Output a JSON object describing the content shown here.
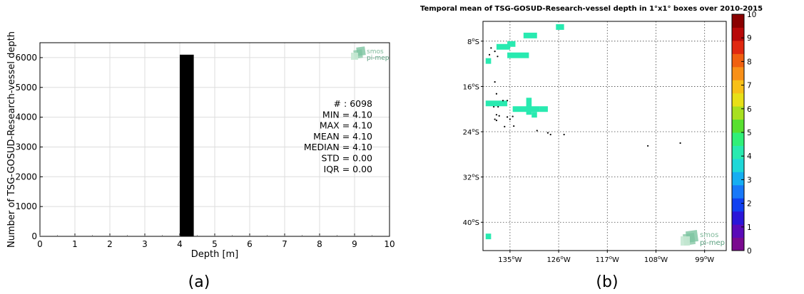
{
  "panel_a": {
    "caption": "(a)",
    "logo": {
      "line1": "smos",
      "line2": "pi-mep"
    },
    "stats": [
      {
        "label": "# :",
        "value": "6098"
      },
      {
        "label": "MIN =",
        "value": "4.10"
      },
      {
        "label": "MAX =",
        "value": " 4.10"
      },
      {
        "label": "MEAN =",
        "value": "4.10"
      },
      {
        "label": "MEDIAN =",
        "value": "4.10"
      },
      {
        "label": "STD =",
        "value": "0.00"
      },
      {
        "label": "IQR =",
        "value": "0.00"
      }
    ]
  },
  "panel_b": {
    "caption": "(b)",
    "logo": {
      "line1": "smos",
      "line2": "pi-mep"
    }
  },
  "chart_data": [
    {
      "type": "bar",
      "title": "",
      "xlabel": "Depth [m]",
      "ylabel": "Number of TSG-GOSUD-Research-vessel depth",
      "xlim": [
        0,
        10
      ],
      "ylim": [
        0,
        6500
      ],
      "xticks": [
        0,
        1,
        2,
        3,
        4,
        5,
        6,
        7,
        8,
        9,
        10
      ],
      "yticks": [
        0,
        1000,
        2000,
        3000,
        4000,
        5000,
        6000
      ],
      "grid": true,
      "bins": [
        {
          "x0": 4.0,
          "x1": 4.4,
          "count": 6098
        }
      ],
      "bar_color": "#000000"
    },
    {
      "type": "heatmap",
      "title": "Temporal mean of TSG-GOSUD-Research-vessel depth in 1°x1° boxes over 2010-2015",
      "x_ticks": [
        {
          "lon": -135,
          "label": "135°W"
        },
        {
          "lon": -126,
          "label": "126°W"
        },
        {
          "lon": -117,
          "label": "117°W"
        },
        {
          "lon": -108,
          "label": "108°W"
        },
        {
          "lon": -99,
          "label": "99°W"
        }
      ],
      "y_ticks": [
        {
          "lat": -8,
          "label": "8°S"
        },
        {
          "lat": -16,
          "label": "16°S"
        },
        {
          "lat": -24,
          "label": "24°S"
        },
        {
          "lat": -32,
          "label": "32°S"
        },
        {
          "lat": -40,
          "label": "40°S"
        }
      ],
      "lon_range": [
        -140,
        -95
      ],
      "lat_range": [
        -45,
        -4.5
      ],
      "grid": true,
      "colorbar": {
        "min": 0,
        "max": 10,
        "ticks": [
          0,
          1,
          2,
          3,
          4,
          5,
          6,
          7,
          8,
          9,
          10
        ],
        "colors": [
          "#7a0a8f",
          "#5a0ab8",
          "#2a16d8",
          "#1040f0",
          "#1878f8",
          "#16aef2",
          "#1ed8d8",
          "#28eab0",
          "#30f078",
          "#58e030",
          "#a8e020",
          "#e8e018",
          "#f8c018",
          "#f89018",
          "#f06010",
          "#e02810",
          "#b80808",
          "#8a0000"
        ]
      },
      "cells": [
        {
          "lon": -137.5,
          "lat": -8.5,
          "w": 2.5,
          "h": 1,
          "value": 4.1
        },
        {
          "lon": -135.5,
          "lat": -8,
          "w": 1.5,
          "h": 1,
          "value": 4.1
        },
        {
          "lon": -132.5,
          "lat": -6.5,
          "w": 2.5,
          "h": 1,
          "value": 4.1
        },
        {
          "lon": -126.5,
          "lat": -5,
          "w": 1.5,
          "h": 1,
          "value": 4.1
        },
        {
          "lon": -135.5,
          "lat": -10,
          "w": 4,
          "h": 1,
          "value": 4.1
        },
        {
          "lon": -139.5,
          "lat": -11,
          "w": 1,
          "h": 1,
          "value": 4.1
        },
        {
          "lon": -139.5,
          "lat": -18.5,
          "w": 4,
          "h": 1,
          "value": 4.1
        },
        {
          "lon": -134.5,
          "lat": -19.5,
          "w": 5,
          "h": 1,
          "value": 4.1
        },
        {
          "lon": -132,
          "lat": -18,
          "w": 1,
          "h": 3,
          "value": 4.1
        },
        {
          "lon": -131,
          "lat": -20.5,
          "w": 1,
          "h": 1,
          "value": 4.1
        },
        {
          "lon": -129.5,
          "lat": -19.5,
          "w": 1.5,
          "h": 1,
          "value": 4.1
        },
        {
          "lon": -139.5,
          "lat": -42,
          "w": 1,
          "h": 1,
          "value": 4.1
        }
      ],
      "dots": [
        {
          "lon": -138.5,
          "lat": -9.2
        },
        {
          "lon": -137.8,
          "lat": -9.8
        },
        {
          "lon": -138.8,
          "lat": -10.4
        },
        {
          "lon": -137.3,
          "lat": -10.7
        },
        {
          "lon": -137.8,
          "lat": -15.2
        },
        {
          "lon": -137.5,
          "lat": -17.3
        },
        {
          "lon": -136.3,
          "lat": -18.5
        },
        {
          "lon": -135.5,
          "lat": -18.5
        },
        {
          "lon": -138.0,
          "lat": -19.6
        },
        {
          "lon": -137.2,
          "lat": -19.6
        },
        {
          "lon": -137.5,
          "lat": -21.0
        },
        {
          "lon": -137.0,
          "lat": -21.2
        },
        {
          "lon": -137.8,
          "lat": -21.8
        },
        {
          "lon": -137.5,
          "lat": -22.0
        },
        {
          "lon": -135.5,
          "lat": -21.4
        },
        {
          "lon": -135.0,
          "lat": -21.8
        },
        {
          "lon": -134.5,
          "lat": -21.3
        },
        {
          "lon": -134.3,
          "lat": -23.0
        },
        {
          "lon": -136.0,
          "lat": -23.1
        },
        {
          "lon": -130.0,
          "lat": -23.8
        },
        {
          "lon": -128.0,
          "lat": -24.2
        },
        {
          "lon": -125.0,
          "lat": -24.5
        },
        {
          "lon": -109.5,
          "lat": -26.5
        },
        {
          "lon": -103.5,
          "lat": -26.0
        },
        {
          "lon": -127.5,
          "lat": -24.5
        }
      ]
    }
  ]
}
